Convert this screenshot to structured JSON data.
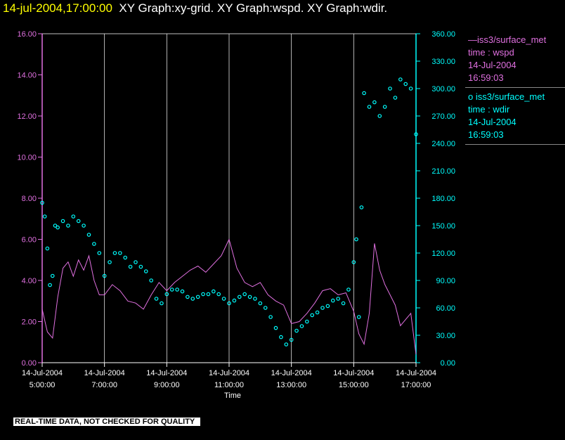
{
  "header": {
    "timestamp": "14-jul-2004,17:00:00",
    "graphs": "XY Graph:xy-grid.  XY Graph:wspd.  XY Graph:wdir."
  },
  "disclaimer": "REAL-TIME DATA, NOT CHECKED FOR QUALITY",
  "colors": {
    "wspd": "#e070e0",
    "wdir": "#00ffff",
    "grid": "#ffffff",
    "axis_text": "#ffffff",
    "timestamp": "#ffff00"
  },
  "legend": [
    {
      "line1": "iss3/surface_met",
      "line2": "time : wspd",
      "line3": "14-Jul-2004",
      "line4": "16:59:03",
      "marker": "line"
    },
    {
      "line1": "iss3/surface_met",
      "line2": "time : wdir",
      "line3": "14-Jul-2004",
      "line4": "16:59:03",
      "marker": "circle"
    }
  ],
  "chart_data": {
    "type": "line",
    "xlabel": "Time",
    "x_range": [
      "14-Jul-2004 05:00:00",
      "14-Jul-2004 17:00:00"
    ],
    "x_ticks": [
      {
        "date": "14-Jul-2004",
        "time": "5:00:00",
        "h": 5
      },
      {
        "date": "14-Jul-2004",
        "time": "7:00:00",
        "h": 7
      },
      {
        "date": "14-Jul-2004",
        "time": "9:00:00",
        "h": 9
      },
      {
        "date": "14-Jul-2004",
        "time": "11:00:00",
        "h": 11
      },
      {
        "date": "14-Jul-2004",
        "time": "13:00:00",
        "h": 13
      },
      {
        "date": "14-Jul-2004",
        "time": "15:00:00",
        "h": 15
      },
      {
        "date": "14-Jul-2004",
        "time": "17:00:00",
        "h": 17
      }
    ],
    "y_left": {
      "range": [
        0,
        16
      ],
      "ticks": [
        "0.00",
        "2.00",
        "4.00",
        "6.00",
        "8.00",
        "10.00",
        "12.00",
        "14.00",
        "16.00"
      ]
    },
    "y_right": {
      "range": [
        0,
        360
      ],
      "ticks": [
        "0.00",
        "30.00",
        "60.00",
        "90.00",
        "120.00",
        "150.00",
        "180.00",
        "210.00",
        "240.00",
        "270.00",
        "300.00",
        "330.00",
        "360.00"
      ]
    },
    "grid": "vertical lines at hour ticks",
    "series": [
      {
        "name": "wspd",
        "axis": "left",
        "style": "line",
        "x": [
          "05:00",
          "05:10",
          "05:20",
          "05:30",
          "05:40",
          "05:50",
          "06:00",
          "06:10",
          "06:20",
          "06:30",
          "06:40",
          "06:50",
          "07:00",
          "07:15",
          "07:30",
          "07:45",
          "08:00",
          "08:15",
          "08:30",
          "08:45",
          "09:00",
          "09:15",
          "09:30",
          "09:45",
          "10:00",
          "10:15",
          "10:30",
          "10:45",
          "11:00",
          "11:15",
          "11:30",
          "11:45",
          "12:00",
          "12:15",
          "12:30",
          "12:45",
          "13:00",
          "13:15",
          "13:30",
          "13:45",
          "14:00",
          "14:15",
          "14:30",
          "14:45",
          "15:00",
          "15:10",
          "15:20",
          "15:30",
          "15:40",
          "15:50",
          "16:00",
          "16:10",
          "16:20",
          "16:30",
          "16:40",
          "16:50",
          "17:00"
        ],
        "values": [
          2.6,
          1.5,
          1.2,
          3.2,
          4.6,
          4.9,
          4.2,
          5.0,
          4.5,
          5.2,
          4.0,
          3.3,
          3.3,
          3.8,
          3.5,
          3.0,
          2.9,
          2.6,
          3.3,
          3.9,
          3.5,
          3.9,
          4.2,
          4.5,
          4.7,
          4.4,
          4.8,
          5.2,
          6.0,
          4.6,
          3.9,
          3.7,
          3.9,
          3.3,
          3.0,
          2.8,
          1.9,
          2.0,
          2.4,
          2.9,
          3.5,
          3.6,
          3.3,
          3.4,
          2.5,
          1.4,
          0.9,
          2.4,
          5.8,
          4.5,
          3.8,
          3.3,
          2.8,
          1.8,
          2.1,
          2.4,
          0.4
        ]
      },
      {
        "name": "wdir",
        "axis": "right",
        "style": "markers",
        "x": [
          "05:00",
          "05:05",
          "05:10",
          "05:15",
          "05:20",
          "05:25",
          "05:30",
          "05:40",
          "05:50",
          "06:00",
          "06:10",
          "06:20",
          "06:30",
          "06:40",
          "06:50",
          "07:00",
          "07:10",
          "07:20",
          "07:30",
          "07:40",
          "07:50",
          "08:00",
          "08:10",
          "08:20",
          "08:30",
          "08:40",
          "08:50",
          "09:00",
          "09:10",
          "09:20",
          "09:30",
          "09:40",
          "09:50",
          "10:00",
          "10:10",
          "10:20",
          "10:30",
          "10:40",
          "10:50",
          "11:00",
          "11:10",
          "11:20",
          "11:30",
          "11:40",
          "11:50",
          "12:00",
          "12:10",
          "12:20",
          "12:30",
          "12:40",
          "12:50",
          "13:00",
          "13:10",
          "13:20",
          "13:30",
          "13:40",
          "13:50",
          "14:00",
          "14:10",
          "14:20",
          "14:30",
          "14:40",
          "14:50",
          "15:00",
          "15:05",
          "15:10",
          "15:15",
          "15:20",
          "15:30",
          "15:40",
          "15:50",
          "16:00",
          "16:10",
          "16:20",
          "16:30",
          "16:40",
          "16:50",
          "17:00"
        ],
        "values": [
          175,
          160,
          125,
          85,
          95,
          150,
          148,
          155,
          150,
          160,
          155,
          150,
          140,
          130,
          120,
          95,
          110,
          120,
          120,
          115,
          105,
          110,
          105,
          100,
          90,
          70,
          65,
          75,
          80,
          80,
          78,
          72,
          70,
          72,
          75,
          75,
          78,
          75,
          70,
          65,
          68,
          72,
          75,
          72,
          70,
          65,
          60,
          50,
          38,
          28,
          20,
          25,
          35,
          40,
          45,
          52,
          55,
          60,
          62,
          68,
          70,
          65,
          80,
          110,
          135,
          50,
          170,
          295,
          280,
          285,
          270,
          280,
          300,
          290,
          310,
          305,
          300,
          250
        ]
      }
    ]
  }
}
